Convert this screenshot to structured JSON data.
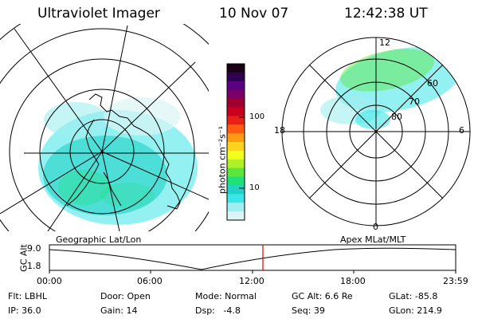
{
  "header": {
    "instrument": "Ultraviolet Imager",
    "date": "10 Nov 07",
    "time": "12:42:38 UT"
  },
  "left_panel": {
    "label": "Geographic Lat/Lon"
  },
  "right_panel": {
    "label": "Apex MLat/MLT",
    "mlt_labels": {
      "top": "12",
      "left": "18",
      "right": "6",
      "bottom": "0"
    },
    "lat_labels": [
      "60",
      "70",
      "80"
    ]
  },
  "colorbar": {
    "unit_label": "photon cm⁻²s⁻¹",
    "ticks": [
      "100",
      "10"
    ],
    "colors": [
      "#1a0016",
      "#300050",
      "#5a0080",
      "#7a0066",
      "#a00030",
      "#c8001e",
      "#e8201a",
      "#ff5a14",
      "#ff9a12",
      "#ffd21e",
      "#f0ff1e",
      "#b0f028",
      "#5ae63c",
      "#1ee17a",
      "#20d2c8",
      "#3ce6e6",
      "#a0eef0",
      "#dcf4f4"
    ]
  },
  "timeline": {
    "y_axis_label": "GC Alt",
    "y_top": "9.0",
    "y_bottom": "1.8",
    "x_labels": [
      "00:00",
      "06:00",
      "12:00",
      "18:00",
      "23:59"
    ],
    "marker_color": "#e00000"
  },
  "info": {
    "row1": [
      "Flt: LBHL",
      "Door: Open",
      "Mode: Normal",
      "GC Alt: 6.6 Re",
      "GLat: -85.8"
    ],
    "row2": [
      "IP: 36.0",
      "Gain: 14",
      "Dsp:   -4.8",
      "Seq: 39",
      "GLon: 214.9"
    ]
  }
}
